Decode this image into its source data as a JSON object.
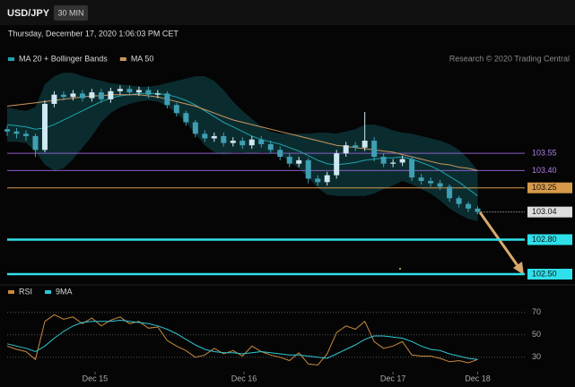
{
  "chart_data": [
    {
      "type": "candlestick",
      "title": "USD/JPY",
      "subtitle": "30 MIN",
      "date": "Thursday, December 17, 2020 1:06:03 PM CET",
      "source": "Research © 2020 Trading Central",
      "up_color": "#cfe9f2",
      "down_color": "#3f9fb3",
      "xlim": [
        0,
        165
      ],
      "ylim": [
        102.43,
        104.26
      ],
      "x": [
        0,
        3,
        6,
        9,
        12,
        15,
        18,
        21,
        24,
        27,
        30,
        33,
        36,
        39,
        42,
        45,
        48,
        51,
        54,
        57,
        60,
        63,
        66,
        69,
        72,
        75,
        78,
        81,
        84,
        87,
        90,
        93,
        96,
        99,
        102,
        105,
        108,
        111,
        114,
        117,
        120,
        123,
        126,
        129,
        132,
        135,
        138,
        141,
        144,
        147,
        150
      ],
      "open": [
        103.76,
        103.74,
        103.72,
        103.7,
        103.58,
        103.98,
        104.06,
        104.04,
        104.07,
        104.03,
        104.08,
        104.02,
        104.09,
        104.11,
        104.08,
        104.1,
        104.06,
        104.07,
        103.97,
        103.9,
        103.82,
        103.72,
        103.68,
        103.7,
        103.64,
        103.66,
        103.62,
        103.67,
        103.63,
        103.58,
        103.52,
        103.46,
        103.49,
        103.33,
        103.3,
        103.36,
        103.55,
        103.62,
        103.6,
        103.66,
        103.52,
        103.46,
        103.47,
        103.5,
        103.34,
        103.31,
        103.29,
        103.26,
        103.16,
        103.11,
        103.07
      ],
      "high": [
        103.79,
        103.77,
        103.75,
        103.72,
        104.01,
        104.09,
        104.09,
        104.1,
        104.1,
        104.11,
        104.11,
        104.12,
        104.14,
        104.14,
        104.13,
        104.13,
        104.1,
        104.09,
        103.99,
        103.92,
        103.84,
        103.75,
        103.73,
        103.73,
        103.69,
        103.69,
        103.7,
        103.7,
        103.66,
        103.61,
        103.55,
        103.52,
        103.51,
        103.36,
        103.39,
        103.58,
        103.65,
        103.65,
        103.91,
        103.69,
        103.55,
        103.5,
        103.53,
        103.52,
        103.37,
        103.34,
        103.32,
        103.28,
        103.18,
        103.13,
        103.09
      ],
      "low": [
        103.7,
        103.68,
        103.66,
        103.52,
        103.56,
        103.95,
        104.01,
        104.01,
        104.0,
        104.0,
        103.99,
        103.99,
        104.06,
        104.05,
        104.05,
        104.03,
        104.03,
        103.94,
        103.87,
        103.79,
        103.69,
        103.65,
        103.65,
        103.61,
        103.61,
        103.59,
        103.59,
        103.6,
        103.55,
        103.49,
        103.43,
        103.43,
        103.29,
        103.27,
        103.27,
        103.33,
        103.52,
        103.57,
        103.57,
        103.48,
        103.43,
        103.43,
        103.44,
        103.31,
        103.28,
        103.26,
        103.23,
        103.13,
        103.08,
        103.04,
        103.02
      ],
      "close": [
        103.74,
        103.72,
        103.7,
        103.58,
        103.98,
        104.06,
        104.04,
        104.07,
        104.03,
        104.08,
        104.02,
        104.09,
        104.11,
        104.08,
        104.1,
        104.06,
        104.07,
        103.97,
        103.9,
        103.82,
        103.72,
        103.68,
        103.7,
        103.64,
        103.66,
        103.62,
        103.67,
        103.63,
        103.58,
        103.52,
        103.46,
        103.49,
        103.33,
        103.3,
        103.36,
        103.55,
        103.62,
        103.6,
        103.66,
        103.52,
        103.46,
        103.47,
        103.5,
        103.34,
        103.31,
        103.29,
        103.26,
        103.16,
        103.11,
        103.07,
        103.04
      ],
      "series": [
        {
          "name": "MA 20 + Bollinger Bands",
          "color": "#1fa4ac",
          "band_color": "#0e3a3e",
          "values": [
            103.8,
            103.79,
            103.78,
            103.76,
            103.77,
            103.8,
            103.84,
            103.88,
            103.92,
            103.96,
            104.0,
            104.03,
            104.05,
            104.06,
            104.07,
            104.07,
            104.07,
            104.06,
            104.04,
            104.01,
            103.97,
            103.92,
            103.87,
            103.82,
            103.78,
            103.74,
            103.7,
            103.67,
            103.65,
            103.63,
            103.6,
            103.57,
            103.53,
            103.49,
            103.46,
            103.45,
            103.46,
            103.47,
            103.49,
            103.5,
            103.51,
            103.51,
            103.52,
            103.5,
            103.47,
            103.44,
            103.4,
            103.35,
            103.3,
            103.24,
            103.18
          ],
          "upper": [
            103.95,
            103.93,
            103.92,
            103.95,
            104.15,
            104.22,
            104.25,
            104.25,
            104.22,
            104.2,
            104.18,
            104.16,
            104.15,
            104.14,
            104.13,
            104.13,
            104.14,
            104.16,
            104.18,
            104.2,
            104.22,
            104.22,
            104.18,
            104.1,
            104.0,
            103.92,
            103.85,
            103.78,
            103.74,
            103.72,
            103.72,
            103.72,
            103.72,
            103.73,
            103.73,
            103.72,
            103.74,
            103.76,
            103.8,
            103.8,
            103.78,
            103.75,
            103.73,
            103.72,
            103.7,
            103.68,
            103.66,
            103.63,
            103.58,
            103.5,
            103.4
          ],
          "lower": [
            103.65,
            103.65,
            103.64,
            103.57,
            103.45,
            103.4,
            103.42,
            103.5,
            103.6,
            103.7,
            103.82,
            103.9,
            103.95,
            103.98,
            104.0,
            104.01,
            104.0,
            103.96,
            103.9,
            103.82,
            103.72,
            103.62,
            103.56,
            103.54,
            103.56,
            103.56,
            103.55,
            103.56,
            103.56,
            103.54,
            103.48,
            103.42,
            103.34,
            103.25,
            103.19,
            103.18,
            103.18,
            103.18,
            103.18,
            103.2,
            103.24,
            103.27,
            103.31,
            103.28,
            103.24,
            103.2,
            103.14,
            103.07,
            103.02,
            102.98,
            102.96
          ]
        },
        {
          "name": "MA 50",
          "color": "#c9965e",
          "values": [
            103.96,
            103.97,
            103.98,
            103.99,
            104.0,
            104.01,
            104.02,
            104.03,
            104.04,
            104.05,
            104.05,
            104.06,
            104.06,
            104.06,
            104.06,
            104.05,
            104.04,
            104.02,
            104.0,
            103.98,
            103.96,
            103.93,
            103.9,
            103.87,
            103.84,
            103.82,
            103.8,
            103.78,
            103.76,
            103.74,
            103.72,
            103.7,
            103.68,
            103.66,
            103.64,
            103.62,
            103.61,
            103.6,
            103.59,
            103.58,
            103.57,
            103.56,
            103.54,
            103.52,
            103.5,
            103.48,
            103.46,
            103.45,
            103.43,
            103.42,
            103.4
          ]
        }
      ],
      "levels": [
        {
          "value": 103.55,
          "color": "#8a5cc7",
          "text_color": "#b07ee8",
          "box": false,
          "style": "solid"
        },
        {
          "value": 103.4,
          "label": "103.40",
          "color": "#8a5cc7",
          "text_color": "#b07ee8",
          "box": false,
          "style": "solid"
        },
        {
          "value": 103.25,
          "color": "#d79a4a",
          "text_color": "#111111",
          "box": true,
          "style": "solid"
        },
        {
          "value": 103.04,
          "color": "#dddddd",
          "text_color": "#111111",
          "box": true,
          "style": "dotted"
        },
        {
          "value": 102.8,
          "label": "102.80",
          "color": "#2fe0ea",
          "text_color": "#111111",
          "box": true,
          "style": "thick"
        },
        {
          "value": 102.5,
          "label": "102.50",
          "color": "#2fe0ea",
          "text_color": "#111111",
          "box": true,
          "style": "thick"
        }
      ]
    },
    {
      "type": "line",
      "ylim": [
        17,
        77
      ],
      "yticks": [
        30,
        50,
        70
      ],
      "xticks": [
        {
          "value": 28,
          "label": "Dec 15"
        },
        {
          "value": 75.5,
          "label": "Dec 16"
        },
        {
          "value": 123,
          "label": "Dec 17"
        },
        {
          "value": 150,
          "label": "Dec 18"
        }
      ],
      "series": [
        {
          "name": "RSI",
          "color": "#c98a3e",
          "values": [
            40,
            37,
            35,
            28,
            62,
            68,
            64,
            66,
            60,
            65,
            58,
            63,
            66,
            60,
            62,
            56,
            57,
            45,
            40,
            36,
            30,
            32,
            38,
            33,
            36,
            31,
            40,
            35,
            32,
            30,
            27,
            34,
            24,
            23,
            33,
            52,
            58,
            55,
            62,
            44,
            38,
            40,
            44,
            32,
            31,
            31,
            29,
            26,
            27,
            25,
            28
          ]
        },
        {
          "name": "9MA",
          "color": "#2fc7d6",
          "values": [
            42,
            40,
            38,
            35,
            40,
            47,
            53,
            58,
            61,
            62,
            62,
            62,
            63,
            62,
            61,
            60,
            58,
            55,
            51,
            46,
            41,
            37,
            35,
            34,
            34,
            33,
            34,
            35,
            34,
            33,
            32,
            32,
            31,
            30,
            29,
            33,
            37,
            41,
            46,
            49,
            49,
            48,
            47,
            44,
            40,
            37,
            36,
            33,
            31,
            29,
            28
          ]
        }
      ]
    }
  ]
}
